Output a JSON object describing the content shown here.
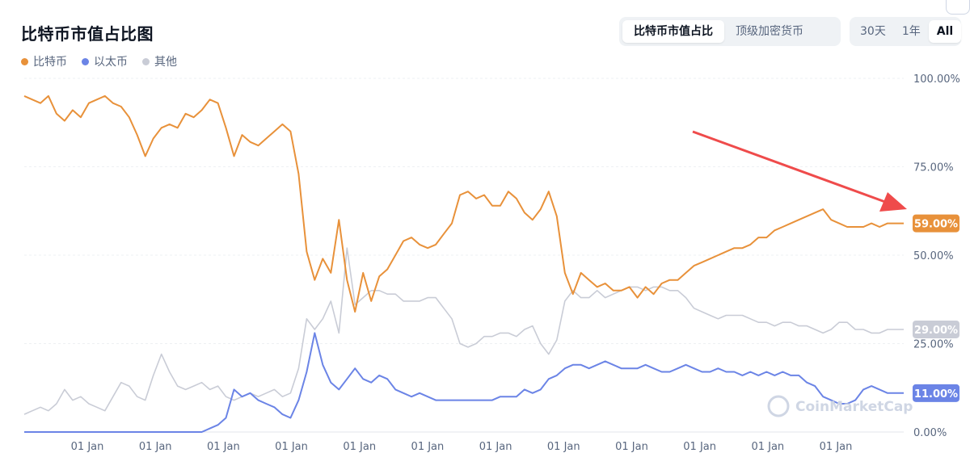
{
  "title": "比特币市值占比图",
  "legend": [
    {
      "label": "比特币",
      "color": "#e8913a"
    },
    {
      "label": "以太币",
      "color": "#6b84e6"
    },
    {
      "label": "其他",
      "color": "#c9ccd6"
    }
  ],
  "segment_main": [
    "比特币市值占比",
    "顶级加密货币"
  ],
  "segment_range": [
    "30天",
    "1年",
    "All"
  ],
  "watermark": "CoinMarketCap",
  "chart_data": {
    "type": "line",
    "x": [
      0,
      1,
      2,
      3,
      4,
      5,
      6,
      7,
      8,
      9,
      10,
      11,
      12,
      13,
      14,
      15,
      16,
      17,
      18,
      19,
      20,
      21,
      22,
      23,
      24,
      25,
      26,
      27,
      28,
      29,
      30,
      31,
      32,
      33,
      34,
      35,
      36,
      37,
      38,
      39,
      40,
      41,
      42,
      43,
      44,
      45,
      46,
      47,
      48,
      49,
      50,
      51,
      52,
      53,
      54,
      55,
      56,
      57,
      58,
      59,
      60,
      61,
      62,
      63,
      64,
      65,
      66,
      67,
      68,
      69,
      70,
      71,
      72,
      73,
      74,
      75,
      76,
      77,
      78,
      79,
      80,
      81,
      82,
      83,
      84,
      85,
      86,
      87,
      88,
      89,
      90,
      91,
      92,
      93,
      94,
      95,
      96,
      97,
      98,
      99,
      100,
      101,
      102,
      103,
      104,
      105,
      106,
      107,
      108,
      109
    ],
    "x_tick_labels": [
      "01 Jan",
      "01 Jan",
      "01 Jan",
      "01 Jan",
      "01 Jan",
      "01 Jan",
      "01 Jan",
      "01 Jan",
      "01 Jan",
      "01 Jan",
      "01 Jan",
      "01 Jan"
    ],
    "y_tick_labels": [
      "100.00%",
      "75.00%",
      "50.00%",
      "25.00%",
      "0.00%"
    ],
    "ylim": [
      0,
      100
    ],
    "series": [
      {
        "name": "比特币",
        "color": "#e8913a",
        "end_label": "59.00%",
        "values": [
          95,
          94,
          93,
          95,
          90,
          88,
          91,
          89,
          93,
          94,
          95,
          93,
          92,
          89,
          84,
          78,
          83,
          86,
          87,
          86,
          90,
          89,
          91,
          94,
          93,
          86,
          78,
          84,
          82,
          81,
          83,
          85,
          87,
          85,
          73,
          51,
          43,
          49,
          45,
          60,
          43,
          34,
          45,
          37,
          44,
          46,
          50,
          54,
          55,
          53,
          52,
          53,
          56,
          59,
          67,
          68,
          66,
          67,
          64,
          64,
          68,
          66,
          62,
          60,
          63,
          68,
          61,
          45,
          39,
          45,
          43,
          41,
          42,
          40,
          40,
          41,
          38,
          41,
          39,
          42,
          43,
          43,
          45,
          47,
          48,
          49,
          50,
          51,
          52,
          52,
          53,
          55,
          55,
          57,
          58,
          59,
          60,
          61,
          62,
          63,
          60,
          59,
          58,
          58,
          58,
          59,
          58,
          59,
          59,
          59
        ]
      },
      {
        "name": "以太币",
        "color": "#6b84e6",
        "end_label": "11.00%",
        "values": [
          0,
          0,
          0,
          0,
          0,
          0,
          0,
          0,
          0,
          0,
          0,
          0,
          0,
          0,
          0,
          0,
          0,
          0,
          0,
          0,
          0,
          0,
          0,
          1,
          2,
          4,
          12,
          10,
          11,
          9,
          8,
          7,
          5,
          4,
          9,
          17,
          28,
          19,
          14,
          12,
          15,
          18,
          15,
          14,
          16,
          15,
          12,
          11,
          10,
          11,
          10,
          9,
          9,
          9,
          9,
          9,
          9,
          9,
          9,
          10,
          10,
          10,
          12,
          11,
          12,
          15,
          16,
          18,
          19,
          19,
          18,
          19,
          20,
          19,
          18,
          18,
          18,
          19,
          18,
          17,
          17,
          18,
          19,
          18,
          17,
          17,
          18,
          17,
          17,
          16,
          17,
          16,
          17,
          16,
          17,
          16,
          16,
          14,
          13,
          10,
          9,
          8,
          8,
          9,
          12,
          13,
          12,
          11,
          11,
          11
        ]
      },
      {
        "name": "其他",
        "color": "#c9ccd6",
        "end_label": "29.00%",
        "values": [
          5,
          6,
          7,
          6,
          8,
          12,
          9,
          10,
          8,
          7,
          6,
          10,
          14,
          13,
          10,
          9,
          16,
          22,
          17,
          13,
          12,
          13,
          14,
          12,
          13,
          10,
          9,
          10,
          11,
          10,
          11,
          12,
          10,
          11,
          18,
          32,
          29,
          32,
          37,
          28,
          52,
          36,
          38,
          40,
          40,
          39,
          39,
          37,
          37,
          37,
          38,
          38,
          35,
          32,
          25,
          24,
          25,
          27,
          27,
          28,
          28,
          27,
          29,
          30,
          25,
          22,
          26,
          37,
          40,
          38,
          38,
          40,
          38,
          39,
          40,
          41,
          41,
          40,
          41,
          41,
          40,
          40,
          38,
          35,
          34,
          33,
          32,
          33,
          33,
          33,
          32,
          31,
          31,
          30,
          31,
          31,
          30,
          30,
          29,
          28,
          29,
          31,
          31,
          29,
          29,
          28,
          28,
          29,
          29,
          29
        ]
      }
    ]
  }
}
